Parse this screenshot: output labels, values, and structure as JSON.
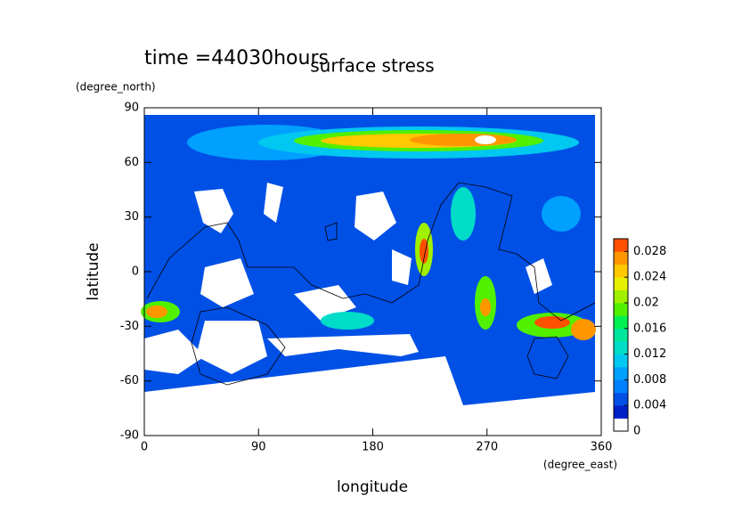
{
  "chart_data": {
    "type": "contour",
    "time_label": "time =44030hours",
    "title": "surface stress",
    "ylabel_unit": "(degree_north)",
    "ylabel": "latitude",
    "xlabel": "longitude",
    "xlabel_unit": "(degree_east)",
    "xlim": [
      0,
      360
    ],
    "xticks": [
      0,
      90,
      180,
      270,
      360
    ],
    "ylim": [
      -90,
      90
    ],
    "yticks": [
      -90,
      -60,
      -30,
      0,
      30,
      60,
      90
    ],
    "colorbar": {
      "lim": [
        0,
        0.03
      ],
      "ticks": [
        0,
        0.004,
        0.008,
        0.012,
        0.016,
        0.02,
        0.024,
        0.028
      ],
      "colors": [
        "#ffffff",
        "#0020c8",
        "#0050e6",
        "#0080ff",
        "#00a0ff",
        "#00c8f0",
        "#00dcc8",
        "#00e69b",
        "#00f050",
        "#50f000",
        "#a0f000",
        "#e6f000",
        "#ffc800",
        "#ff9600",
        "#ff5000"
      ]
    }
  }
}
